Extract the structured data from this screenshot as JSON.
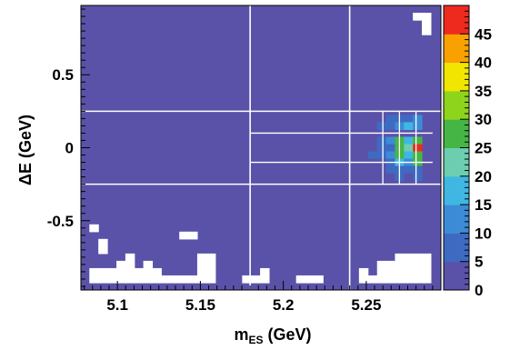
{
  "chart_data": {
    "type": "heatmap",
    "xlabel_main": "m",
    "xlabel_sub": "ES",
    "xlabel_unit": " (GeV)",
    "ylabel": "ΔE (GeV)",
    "xlim": [
      5.078,
      5.295
    ],
    "ylim": [
      -0.975,
      0.975
    ],
    "x_ticks": [
      {
        "value": 5.1,
        "label": "5.1"
      },
      {
        "value": 5.15,
        "label": "5.15"
      },
      {
        "value": 5.2,
        "label": "5.2"
      },
      {
        "value": 5.25,
        "label": "5.25"
      }
    ],
    "y_ticks": [
      {
        "value": 0.5,
        "label": "0.5"
      },
      {
        "value": 0,
        "label": "0"
      },
      {
        "value": -0.5,
        "label": "-0.5"
      }
    ],
    "z_range": [
      0,
      50
    ],
    "colorbar_ticks": [
      {
        "value": 0,
        "label": "0"
      },
      {
        "value": 5,
        "label": "5"
      },
      {
        "value": 10,
        "label": "10"
      },
      {
        "value": 15,
        "label": "15"
      },
      {
        "value": 20,
        "label": "20"
      },
      {
        "value": 25,
        "label": "25"
      },
      {
        "value": 30,
        "label": "30"
      },
      {
        "value": 35,
        "label": "35"
      },
      {
        "value": 40,
        "label": "40"
      },
      {
        "value": 45,
        "label": "45"
      }
    ],
    "palette": [
      "#5a52a8",
      "#3f6ac2",
      "#3c8bd6",
      "#3fb7e2",
      "#6dcdb0",
      "#45b645",
      "#8fd41c",
      "#f2e600",
      "#f8a100",
      "#ee2a1f"
    ],
    "background_color": "#5a52a8",
    "grid_color": "#ffffff",
    "region_lines": {
      "vertical": [
        5.18,
        5.24
      ],
      "horizontal": [
        0.25,
        -0.25
      ],
      "inner_vertical": [
        5.26,
        5.27,
        5.28
      ],
      "inner_horizontal": [
        0.1,
        -0.1
      ],
      "inner_x_range": [
        5.18,
        5.29
      ],
      "inner_y_range": [
        -0.25,
        0.25
      ]
    },
    "empty_bins": [
      [
        5.0858,
        -0.55
      ],
      [
        5.0858,
        -0.85
      ],
      [
        5.0858,
        -0.9
      ],
      [
        5.0912,
        -0.65
      ],
      [
        5.0912,
        -0.7
      ],
      [
        5.0912,
        -0.85
      ],
      [
        5.0912,
        -0.9
      ],
      [
        5.0967,
        -0.85
      ],
      [
        5.0967,
        -0.9
      ],
      [
        5.1021,
        -0.8
      ],
      [
        5.1021,
        -0.85
      ],
      [
        5.1021,
        -0.9
      ],
      [
        5.1075,
        -0.75
      ],
      [
        5.1075,
        -0.8
      ],
      [
        5.1075,
        -0.85
      ],
      [
        5.1075,
        -0.9
      ],
      [
        5.1129,
        -0.85
      ],
      [
        5.1129,
        -0.9
      ],
      [
        5.1183,
        -0.8
      ],
      [
        5.1183,
        -0.85
      ],
      [
        5.1183,
        -0.9
      ],
      [
        5.1237,
        -0.85
      ],
      [
        5.1237,
        -0.9
      ],
      [
        5.1292,
        -0.9
      ],
      [
        5.1346,
        -0.9
      ],
      [
        5.14,
        -0.6
      ],
      [
        5.14,
        -0.9
      ],
      [
        5.1454,
        -0.6
      ],
      [
        5.1454,
        -0.9
      ],
      [
        5.1508,
        -0.75
      ],
      [
        5.1508,
        -0.8
      ],
      [
        5.1508,
        -0.85
      ],
      [
        5.1508,
        -0.9
      ],
      [
        5.1563,
        -0.75
      ],
      [
        5.1563,
        -0.8
      ],
      [
        5.1563,
        -0.85
      ],
      [
        5.1563,
        -0.9
      ],
      [
        5.1779,
        -0.9
      ],
      [
        5.1833,
        -0.9
      ],
      [
        5.1887,
        -0.85
      ],
      [
        5.1887,
        -0.9
      ],
      [
        5.2104,
        -0.9
      ],
      [
        5.2158,
        -0.9
      ],
      [
        5.2212,
        -0.9
      ],
      [
        5.2483,
        -0.85
      ],
      [
        5.2483,
        -0.9
      ],
      [
        5.2537,
        -0.9
      ],
      [
        5.2592,
        -0.8
      ],
      [
        5.2592,
        -0.85
      ],
      [
        5.2592,
        -0.9
      ],
      [
        5.2646,
        -0.8
      ],
      [
        5.2646,
        -0.85
      ],
      [
        5.2646,
        -0.9
      ],
      [
        5.27,
        -0.75
      ],
      [
        5.27,
        -0.8
      ],
      [
        5.27,
        -0.85
      ],
      [
        5.27,
        -0.9
      ],
      [
        5.2754,
        -0.75
      ],
      [
        5.2754,
        -0.8
      ],
      [
        5.2754,
        -0.85
      ],
      [
        5.2754,
        -0.9
      ],
      [
        5.2808,
        -0.75
      ],
      [
        5.2808,
        -0.8
      ],
      [
        5.2808,
        -0.85
      ],
      [
        5.2808,
        -0.9
      ],
      [
        5.2862,
        -0.75
      ],
      [
        5.2862,
        -0.8
      ],
      [
        5.2862,
        -0.85
      ],
      [
        5.2862,
        -0.9
      ],
      [
        5.2808,
        0.9
      ],
      [
        5.2862,
        0.9
      ],
      [
        5.2862,
        0.85
      ],
      [
        5.2862,
        0.8
      ]
    ],
    "nonzero_bins": [
      [
        5.1725,
        0.8,
        2
      ],
      [
        5.1346,
        0.7,
        2
      ],
      [
        5.1563,
        0.7,
        2
      ],
      [
        5.1725,
        0.65,
        1
      ],
      [
        5.1887,
        0.7,
        2
      ],
      [
        5.205,
        0.65,
        1
      ],
      [
        5.2212,
        0.7,
        2
      ],
      [
        5.2373,
        0.7,
        3
      ],
      [
        5.2483,
        0.7,
        2
      ],
      [
        5.2537,
        0.65,
        2
      ],
      [
        5.1563,
        0.45,
        2
      ],
      [
        5.205,
        0.45,
        2
      ],
      [
        5.2429,
        0.45,
        2
      ],
      [
        5.2537,
        0.45,
        3
      ],
      [
        5.2592,
        0.35,
        2
      ],
      [
        5.2646,
        0.35,
        2
      ],
      [
        5.27,
        0.35,
        2
      ],
      [
        5.2592,
        0.3,
        3
      ],
      [
        5.2646,
        0.3,
        4
      ],
      [
        5.27,
        0.3,
        3
      ],
      [
        5.2754,
        0.3,
        4
      ],
      [
        5.2808,
        0.3,
        3
      ],
      [
        5.2537,
        0.2,
        3
      ],
      [
        5.2592,
        0.2,
        4
      ],
      [
        5.2646,
        0.2,
        6
      ],
      [
        5.27,
        0.2,
        8
      ],
      [
        5.2754,
        0.2,
        8
      ],
      [
        5.2808,
        0.2,
        12
      ],
      [
        5.2537,
        0.15,
        3
      ],
      [
        5.2592,
        0.15,
        5
      ],
      [
        5.2646,
        0.15,
        7
      ],
      [
        5.27,
        0.15,
        14
      ],
      [
        5.2754,
        0.15,
        16
      ],
      [
        5.2808,
        0.15,
        10
      ],
      [
        5.2483,
        0.05,
        3
      ],
      [
        5.2537,
        0.05,
        4
      ],
      [
        5.2592,
        0.05,
        6
      ],
      [
        5.2646,
        0.05,
        10
      ],
      [
        5.27,
        0.05,
        27
      ],
      [
        5.2754,
        0.05,
        18
      ],
      [
        5.2808,
        0.05,
        28
      ],
      [
        5.2483,
        0,
        3
      ],
      [
        5.2537,
        0,
        4
      ],
      [
        5.2592,
        0,
        6
      ],
      [
        5.2646,
        0,
        9
      ],
      [
        5.27,
        0,
        28
      ],
      [
        5.2754,
        0,
        20
      ],
      [
        5.2808,
        0,
        49
      ],
      [
        5.2483,
        -0.05,
        2
      ],
      [
        5.2537,
        -0.05,
        5
      ],
      [
        5.2592,
        -0.05,
        7
      ],
      [
        5.2646,
        -0.05,
        12
      ],
      [
        5.27,
        -0.05,
        25
      ],
      [
        5.2754,
        -0.05,
        17
      ],
      [
        5.2808,
        -0.05,
        26
      ],
      [
        5.2537,
        -0.1,
        3
      ],
      [
        5.2592,
        -0.1,
        4
      ],
      [
        5.2646,
        -0.1,
        6
      ],
      [
        5.27,
        -0.1,
        16
      ],
      [
        5.2754,
        -0.1,
        13
      ],
      [
        5.2808,
        -0.1,
        28
      ],
      [
        5.2537,
        -0.15,
        3
      ],
      [
        5.2592,
        -0.15,
        4
      ],
      [
        5.2646,
        -0.15,
        5
      ],
      [
        5.27,
        -0.15,
        7
      ],
      [
        5.2754,
        -0.15,
        6
      ],
      [
        5.2808,
        -0.15,
        9
      ],
      [
        5.2537,
        -0.2,
        2
      ],
      [
        5.2592,
        -0.2,
        3
      ],
      [
        5.2646,
        -0.2,
        4
      ],
      [
        5.27,
        -0.2,
        5
      ],
      [
        5.2754,
        -0.2,
        4
      ],
      [
        5.2808,
        -0.2,
        6
      ],
      [
        5.2212,
        -0.05,
        2
      ],
      [
        5.205,
        -0.05,
        1
      ],
      [
        5.2158,
        -0.1,
        2
      ],
      [
        5.2373,
        -0.15,
        2
      ],
      [
        5.2592,
        -0.3,
        2
      ],
      [
        5.2646,
        -0.35,
        2
      ],
      [
        5.2537,
        -0.3,
        2
      ],
      [
        5.2537,
        -0.35,
        2
      ],
      [
        5.1996,
        0.05,
        2
      ],
      [
        5.1887,
        0.1,
        1
      ]
    ]
  }
}
